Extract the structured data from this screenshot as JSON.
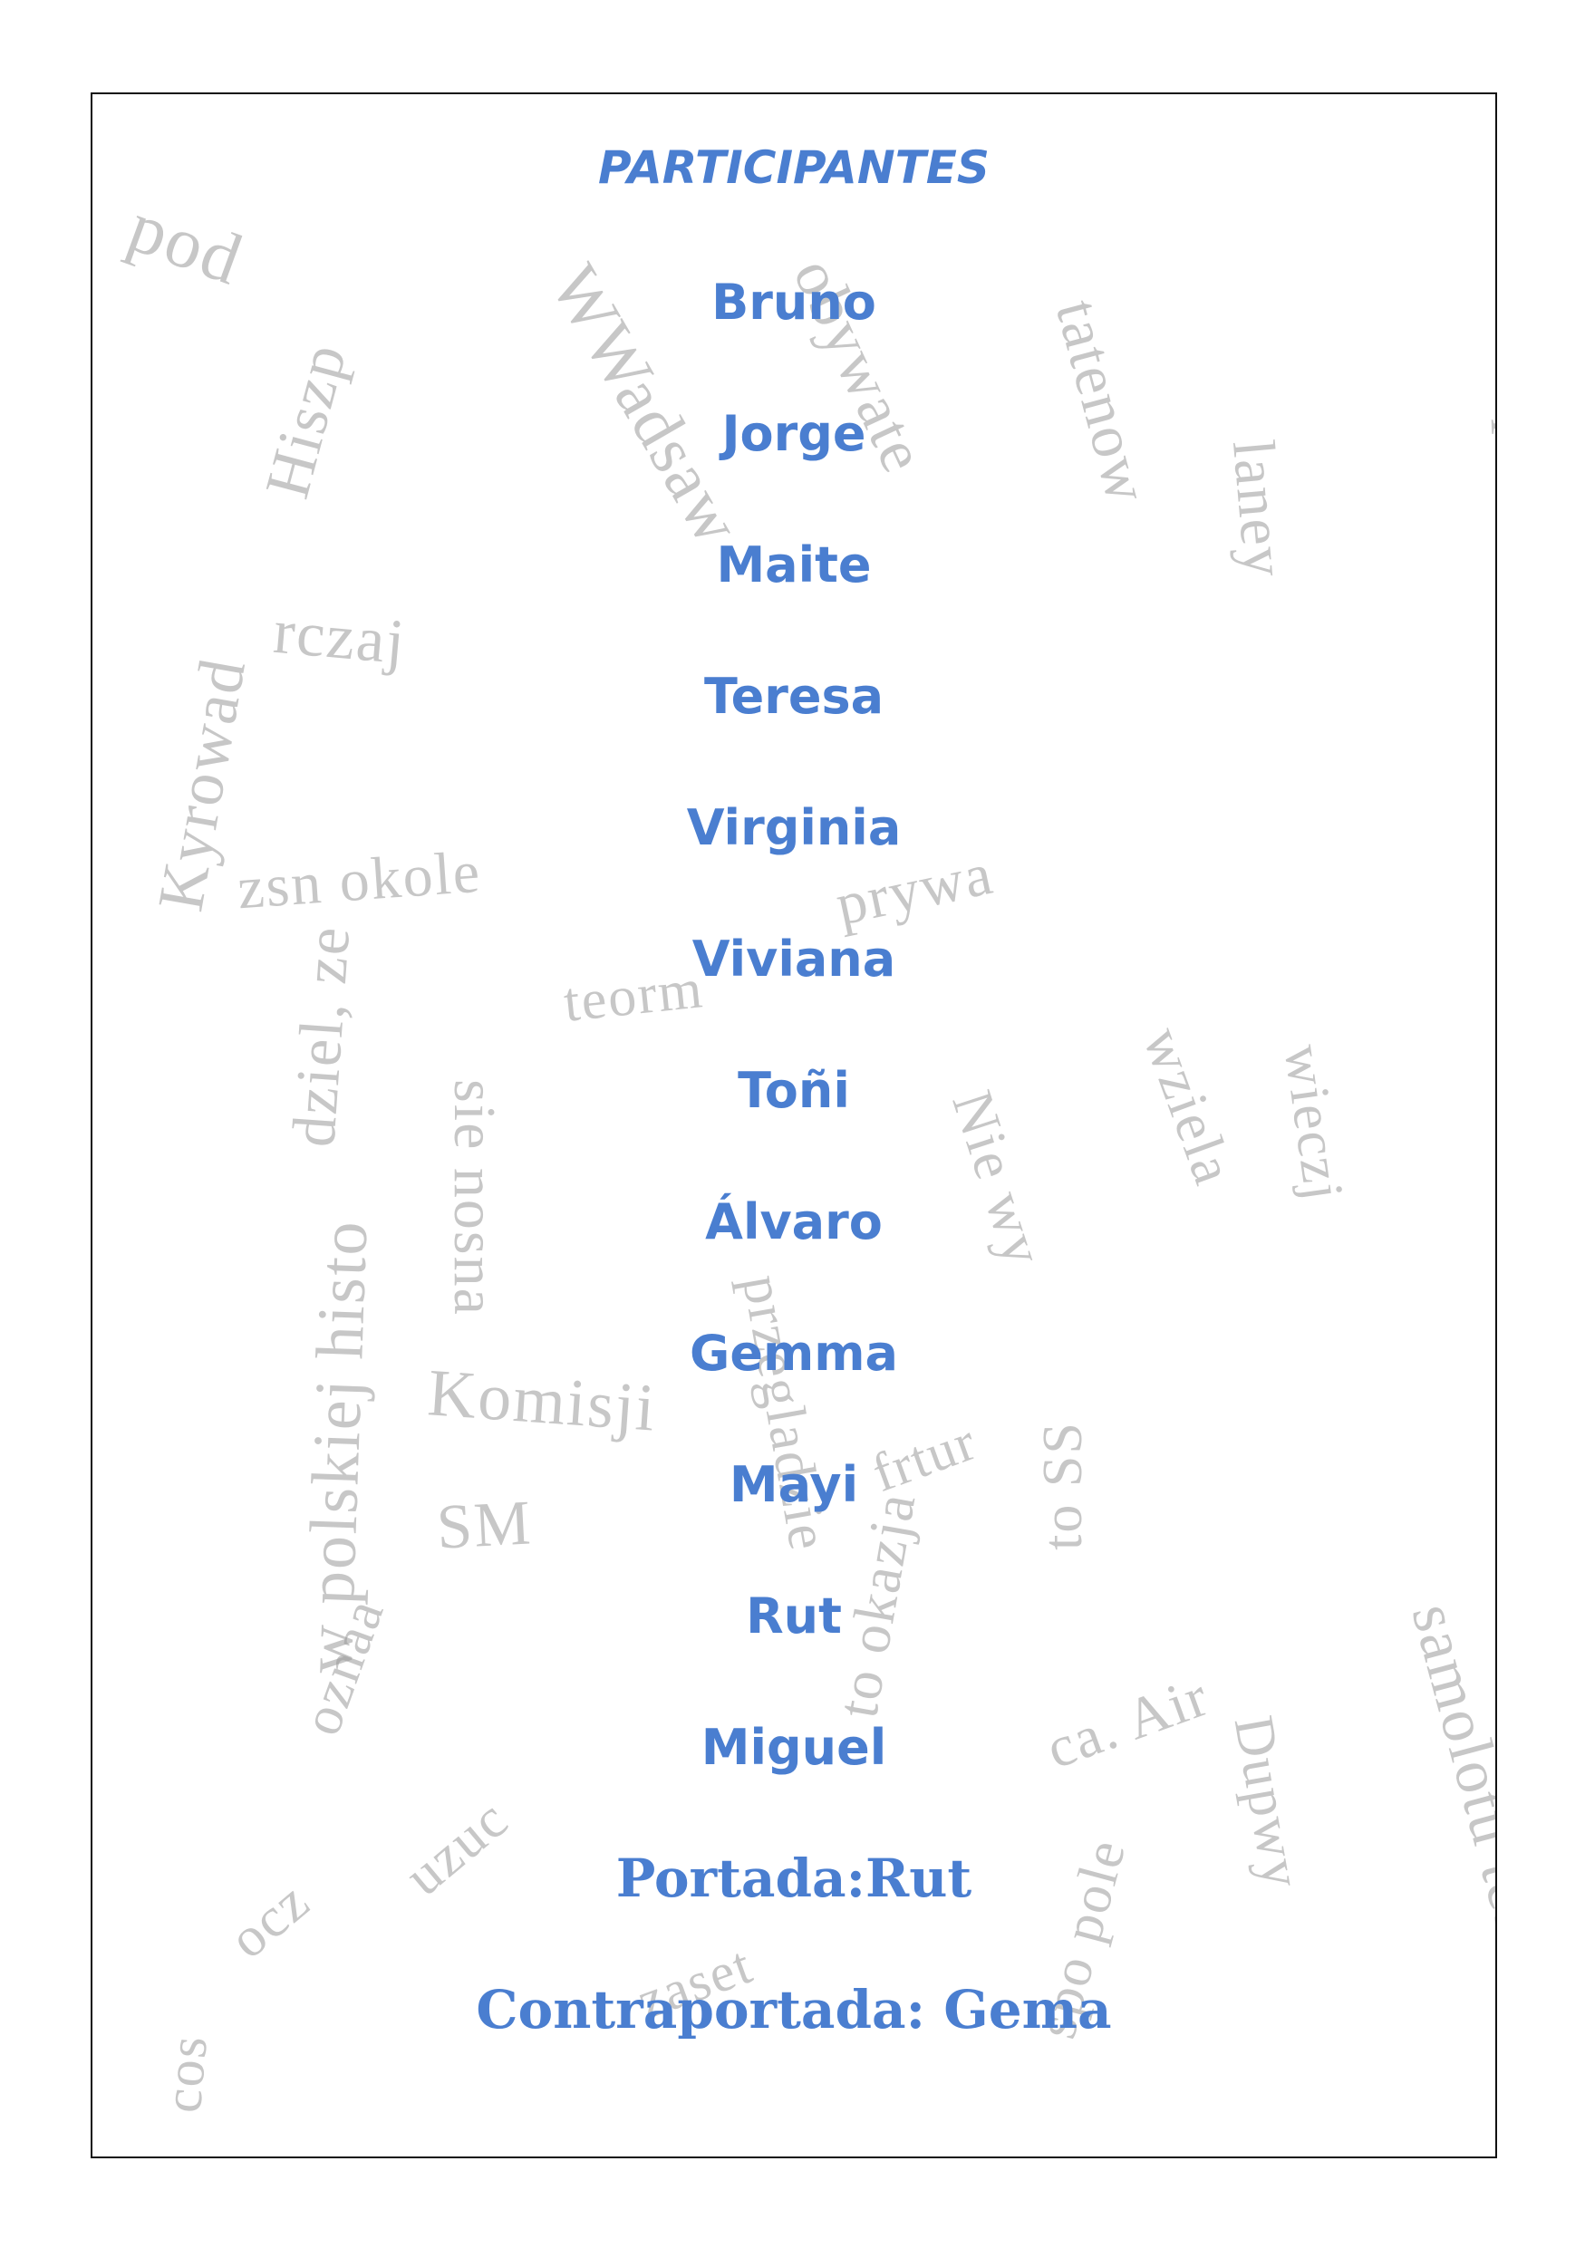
{
  "document": {
    "heading": "PARTICIPANTES",
    "participants": [
      "Bruno",
      "Jorge",
      "Maite",
      "Teresa",
      "Virginia",
      "Viviana",
      "Toñi",
      "Álvaro",
      "Gemma",
      "Mayi",
      "Rut",
      "Miguel"
    ],
    "cover_credit": "Portada:Rut",
    "back_cover_credit": "Contraportada: Gema"
  },
  "colors": {
    "text_accent": "#4a7ed0",
    "frame_border": "#111111",
    "background_collage": "#9a9a9a"
  }
}
